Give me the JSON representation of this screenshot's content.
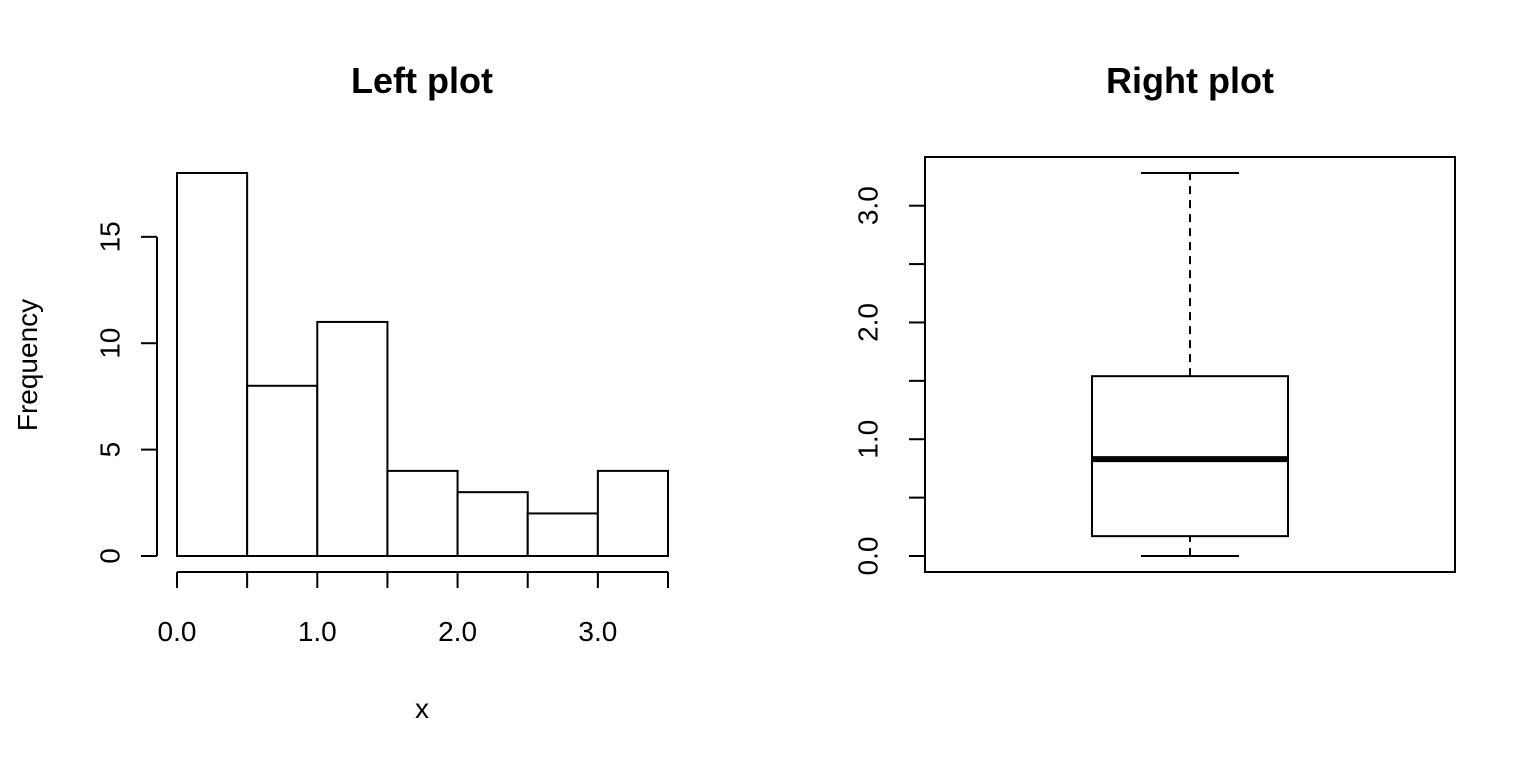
{
  "chart_data": [
    {
      "type": "bar",
      "subtype": "histogram",
      "title": "Left plot",
      "xlabel": "x",
      "ylabel": "Frequency",
      "bins": [
        [
          0.0,
          0.5
        ],
        [
          0.5,
          1.0
        ],
        [
          1.0,
          1.5
        ],
        [
          1.5,
          2.0
        ],
        [
          2.0,
          2.5
        ],
        [
          2.5,
          3.0
        ],
        [
          3.0,
          3.5
        ]
      ],
      "values": [
        18,
        8,
        11,
        4,
        3,
        2,
        4
      ],
      "xlim": [
        0.0,
        3.5
      ],
      "ylim": [
        0,
        18
      ],
      "x_ticks": [
        0.0,
        0.5,
        1.0,
        1.5,
        2.0,
        2.5,
        3.0,
        3.5
      ],
      "x_tick_labels": [
        "0.0",
        "1.0",
        "2.0",
        "3.0"
      ],
      "x_tick_label_values": [
        0.0,
        1.0,
        2.0,
        3.0
      ],
      "y_ticks": [
        0,
        5,
        10,
        15
      ],
      "y_tick_labels": [
        "0",
        "5",
        "10",
        "15"
      ],
      "grid": false,
      "colors": {
        "bar_fill": "#ffffff",
        "bar_stroke": "#000000"
      }
    },
    {
      "type": "boxplot",
      "title": "Right plot",
      "xlabel": "",
      "ylabel": "",
      "stats": {
        "min": 0.0,
        "q1": 0.17,
        "median": 0.83,
        "q3": 1.54,
        "max": 3.28
      },
      "ylim": [
        0.0,
        3.28
      ],
      "y_ticks": [
        0.0,
        0.5,
        1.0,
        1.5,
        2.0,
        2.5,
        3.0
      ],
      "y_tick_labels": [
        "0.0",
        "1.0",
        "2.0",
        "3.0"
      ],
      "y_tick_label_values": [
        0.0,
        1.0,
        2.0,
        3.0
      ],
      "grid": false,
      "colors": {
        "box_fill": "#ffffff",
        "stroke": "#000000"
      }
    }
  ]
}
